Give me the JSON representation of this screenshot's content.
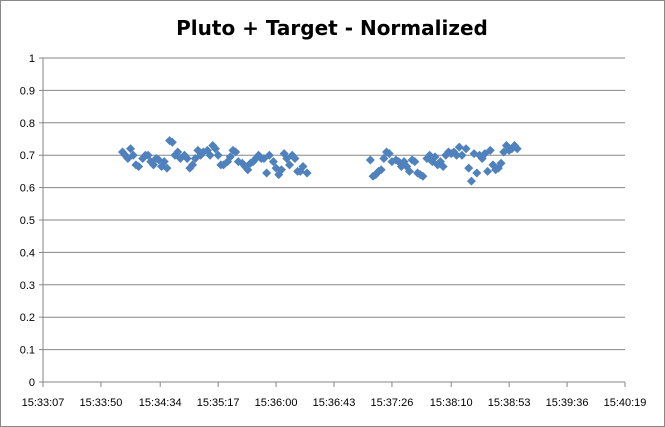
{
  "chart_data": {
    "type": "scatter",
    "title": "Pluto + Target - Normalized",
    "xlabel": "",
    "ylabel": "",
    "xlim": [
      "15:33:07",
      "15:40:19"
    ],
    "ylim": [
      0,
      1
    ],
    "x_ticks": [
      "15:33:07",
      "15:33:50",
      "15:34:34",
      "15:35:17",
      "15:36:00",
      "15:36:43",
      "15:37:26",
      "15:38:10",
      "15:38:53",
      "15:39:36",
      "15:40:19"
    ],
    "y_ticks": [
      "0",
      "0.1",
      "0.2",
      "0.3",
      "0.4",
      "0.5",
      "0.6",
      "0.7",
      "0.8",
      "0.9",
      "1"
    ],
    "grid": "horizontal",
    "legend": "none",
    "marker": "diamond",
    "color": "#4F81BD",
    "points": [
      {
        "x": "15:34:06",
        "y": 0.71
      },
      {
        "x": "15:34:08",
        "y": 0.7
      },
      {
        "x": "15:34:10",
        "y": 0.69
      },
      {
        "x": "15:34:12",
        "y": 0.72
      },
      {
        "x": "15:34:14",
        "y": 0.7
      },
      {
        "x": "15:34:16",
        "y": 0.67
      },
      {
        "x": "15:34:18",
        "y": 0.665
      },
      {
        "x": "15:34:21",
        "y": 0.69
      },
      {
        "x": "15:34:23",
        "y": 0.7
      },
      {
        "x": "15:34:25",
        "y": 0.7
      },
      {
        "x": "15:34:27",
        "y": 0.68
      },
      {
        "x": "15:34:29",
        "y": 0.67
      },
      {
        "x": "15:34:31",
        "y": 0.69
      },
      {
        "x": "15:34:33",
        "y": 0.685
      },
      {
        "x": "15:34:35",
        "y": 0.665
      },
      {
        "x": "15:34:37",
        "y": 0.68
      },
      {
        "x": "15:34:39",
        "y": 0.66
      },
      {
        "x": "15:34:41",
        "y": 0.745
      },
      {
        "x": "15:34:43",
        "y": 0.74
      },
      {
        "x": "15:34:45",
        "y": 0.7
      },
      {
        "x": "15:34:47",
        "y": 0.71
      },
      {
        "x": "15:34:49",
        "y": 0.69
      },
      {
        "x": "15:34:52",
        "y": 0.7
      },
      {
        "x": "15:34:54",
        "y": 0.69
      },
      {
        "x": "15:34:56",
        "y": 0.66
      },
      {
        "x": "15:34:58",
        "y": 0.67
      },
      {
        "x": "15:35:00",
        "y": 0.69
      },
      {
        "x": "15:35:02",
        "y": 0.715
      },
      {
        "x": "15:35:04",
        "y": 0.7
      },
      {
        "x": "15:35:06",
        "y": 0.71
      },
      {
        "x": "15:35:09",
        "y": 0.715
      },
      {
        "x": "15:35:11",
        "y": 0.7
      },
      {
        "x": "15:35:13",
        "y": 0.73
      },
      {
        "x": "15:35:15",
        "y": 0.72
      },
      {
        "x": "15:35:17",
        "y": 0.7
      },
      {
        "x": "15:35:19",
        "y": 0.67
      },
      {
        "x": "15:35:21",
        "y": 0.67
      },
      {
        "x": "15:35:24",
        "y": 0.68
      },
      {
        "x": "15:35:26",
        "y": 0.695
      },
      {
        "x": "15:35:28",
        "y": 0.715
      },
      {
        "x": "15:35:30",
        "y": 0.71
      },
      {
        "x": "15:35:32",
        "y": 0.68
      },
      {
        "x": "15:35:35",
        "y": 0.675
      },
      {
        "x": "15:35:37",
        "y": 0.665
      },
      {
        "x": "15:35:39",
        "y": 0.655
      },
      {
        "x": "15:35:41",
        "y": 0.675
      },
      {
        "x": "15:35:43",
        "y": 0.68
      },
      {
        "x": "15:35:45",
        "y": 0.69
      },
      {
        "x": "15:35:47",
        "y": 0.7
      },
      {
        "x": "15:35:49",
        "y": 0.69
      },
      {
        "x": "15:35:51",
        "y": 0.69
      },
      {
        "x": "15:35:53",
        "y": 0.645
      },
      {
        "x": "15:35:55",
        "y": 0.7
      },
      {
        "x": "15:35:58",
        "y": 0.68
      },
      {
        "x": "15:36:00",
        "y": 0.66
      },
      {
        "x": "15:36:02",
        "y": 0.64
      },
      {
        "x": "15:36:04",
        "y": 0.655
      },
      {
        "x": "15:36:06",
        "y": 0.705
      },
      {
        "x": "15:36:08",
        "y": 0.69
      },
      {
        "x": "15:36:10",
        "y": 0.67
      },
      {
        "x": "15:36:12",
        "y": 0.7
      },
      {
        "x": "15:36:14",
        "y": 0.69
      },
      {
        "x": "15:36:16",
        "y": 0.65
      },
      {
        "x": "15:36:18",
        "y": 0.65
      },
      {
        "x": "15:36:20",
        "y": 0.665
      },
      {
        "x": "15:36:23",
        "y": 0.645
      },
      {
        "x": "15:37:10",
        "y": 0.685
      },
      {
        "x": "15:37:12",
        "y": 0.635
      },
      {
        "x": "15:37:14",
        "y": 0.64
      },
      {
        "x": "15:37:16",
        "y": 0.65
      },
      {
        "x": "15:37:18",
        "y": 0.655
      },
      {
        "x": "15:37:20",
        "y": 0.69
      },
      {
        "x": "15:37:22",
        "y": 0.71
      },
      {
        "x": "15:37:24",
        "y": 0.705
      },
      {
        "x": "15:37:26",
        "y": 0.68
      },
      {
        "x": "15:37:29",
        "y": 0.685
      },
      {
        "x": "15:37:31",
        "y": 0.68
      },
      {
        "x": "15:37:33",
        "y": 0.665
      },
      {
        "x": "15:37:35",
        "y": 0.68
      },
      {
        "x": "15:37:37",
        "y": 0.665
      },
      {
        "x": "15:37:39",
        "y": 0.65
      },
      {
        "x": "15:37:41",
        "y": 0.685
      },
      {
        "x": "15:37:43",
        "y": 0.68
      },
      {
        "x": "15:37:45",
        "y": 0.645
      },
      {
        "x": "15:37:47",
        "y": 0.64
      },
      {
        "x": "15:37:49",
        "y": 0.635
      },
      {
        "x": "15:37:52",
        "y": 0.69
      },
      {
        "x": "15:37:54",
        "y": 0.7
      },
      {
        "x": "15:37:56",
        "y": 0.68
      },
      {
        "x": "15:37:58",
        "y": 0.695
      },
      {
        "x": "15:38:00",
        "y": 0.67
      },
      {
        "x": "15:38:02",
        "y": 0.68
      },
      {
        "x": "15:38:04",
        "y": 0.665
      },
      {
        "x": "15:38:06",
        "y": 0.7
      },
      {
        "x": "15:38:08",
        "y": 0.71
      },
      {
        "x": "15:38:10",
        "y": 0.705
      },
      {
        "x": "15:38:12",
        "y": 0.71
      },
      {
        "x": "15:38:14",
        "y": 0.7
      },
      {
        "x": "15:38:16",
        "y": 0.725
      },
      {
        "x": "15:38:18",
        "y": 0.7
      },
      {
        "x": "15:38:21",
        "y": 0.72
      },
      {
        "x": "15:38:23",
        "y": 0.66
      },
      {
        "x": "15:38:25",
        "y": 0.62
      },
      {
        "x": "15:38:27",
        "y": 0.705
      },
      {
        "x": "15:38:29",
        "y": 0.645
      },
      {
        "x": "15:38:31",
        "y": 0.7
      },
      {
        "x": "15:38:33",
        "y": 0.69
      },
      {
        "x": "15:38:35",
        "y": 0.705
      },
      {
        "x": "15:38:37",
        "y": 0.65
      },
      {
        "x": "15:38:39",
        "y": 0.715
      },
      {
        "x": "15:38:41",
        "y": 0.67
      },
      {
        "x": "15:38:43",
        "y": 0.655
      },
      {
        "x": "15:38:45",
        "y": 0.66
      },
      {
        "x": "15:38:47",
        "y": 0.675
      },
      {
        "x": "15:38:49",
        "y": 0.71
      },
      {
        "x": "15:38:51",
        "y": 0.73
      },
      {
        "x": "15:38:53",
        "y": 0.715
      },
      {
        "x": "15:38:55",
        "y": 0.72
      },
      {
        "x": "15:38:57",
        "y": 0.73
      },
      {
        "x": "15:38:59",
        "y": 0.72
      }
    ]
  }
}
